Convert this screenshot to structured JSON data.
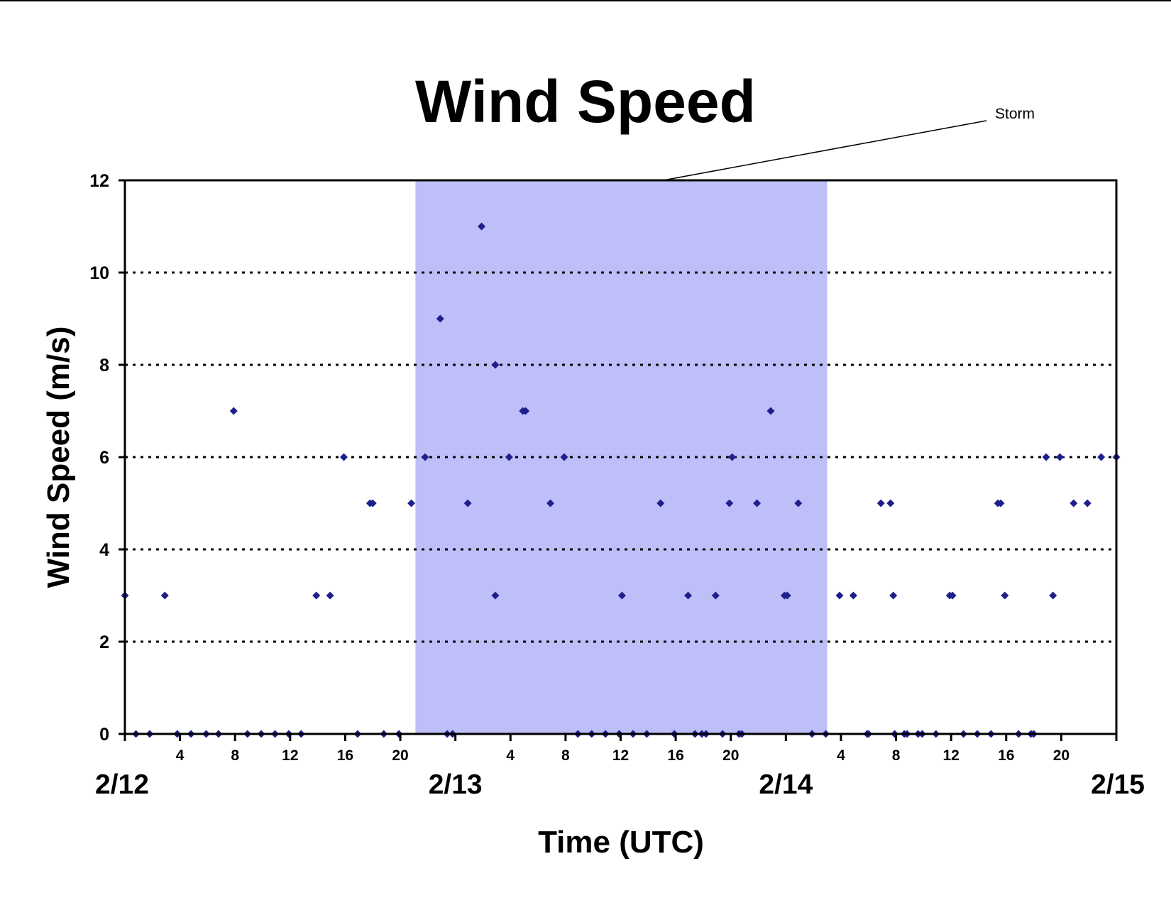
{
  "chart_data": {
    "type": "scatter",
    "title": "Wind Speed",
    "xlabel": "Time (UTC)",
    "ylabel": "Wind Speed (m/s)",
    "x_unit": "hours from 2/12 00:00 UTC",
    "xlim": [
      0,
      72
    ],
    "ylim": [
      0,
      12
    ],
    "y_ticks": [
      0,
      2,
      4,
      6,
      8,
      10,
      12
    ],
    "y_gridlines": [
      2,
      4,
      6,
      8,
      10
    ],
    "grid": "horizontal dotted",
    "legend": "none",
    "marker_color": "#1f1f8c",
    "shade_color": "#bebef8",
    "day_labels": [
      {
        "label": "2/12",
        "x": 0
      },
      {
        "label": "2/13",
        "x": 24
      },
      {
        "label": "2/14",
        "x": 48
      },
      {
        "label": "2/15",
        "x": 72
      }
    ],
    "hour_ticks": [
      {
        "label": "4",
        "x": 4
      },
      {
        "label": "8",
        "x": 8
      },
      {
        "label": "12",
        "x": 12
      },
      {
        "label": "16",
        "x": 16
      },
      {
        "label": "20",
        "x": 20
      },
      {
        "label": "4",
        "x": 28
      },
      {
        "label": "8",
        "x": 32
      },
      {
        "label": "12",
        "x": 36
      },
      {
        "label": "16",
        "x": 40
      },
      {
        "label": "20",
        "x": 44
      },
      {
        "label": "4",
        "x": 52
      },
      {
        "label": "8",
        "x": 56
      },
      {
        "label": "12",
        "x": 60
      },
      {
        "label": "16",
        "x": 64
      },
      {
        "label": "20",
        "x": 68
      }
    ],
    "storm": {
      "label": "Storm",
      "x_start": 21.1,
      "x_end": 51
    },
    "series": [
      {
        "points": [
          [
            0,
            3
          ],
          [
            0.8,
            0
          ],
          [
            1.8,
            0
          ],
          [
            2.9,
            3
          ],
          [
            3.8,
            0
          ],
          [
            4.8,
            0
          ],
          [
            5.9,
            0
          ],
          [
            6.8,
            0
          ],
          [
            7.9,
            7
          ],
          [
            8.9,
            0
          ],
          [
            9.9,
            0
          ],
          [
            10.9,
            0
          ],
          [
            11.9,
            0
          ],
          [
            12.8,
            0
          ],
          [
            13.9,
            3
          ],
          [
            14.9,
            3
          ],
          [
            15.9,
            6
          ],
          [
            16.9,
            0
          ],
          [
            17.8,
            5
          ],
          [
            18,
            5
          ],
          [
            18.8,
            0
          ],
          [
            19.9,
            0
          ],
          [
            20.8,
            5
          ],
          [
            21.8,
            6
          ],
          [
            22.9,
            9
          ],
          [
            23.4,
            0
          ],
          [
            23.8,
            0
          ],
          [
            24.9,
            5
          ],
          [
            25.9,
            11
          ],
          [
            26.9,
            3
          ],
          [
            26.9,
            8
          ],
          [
            27.9,
            6
          ],
          [
            28.9,
            7
          ],
          [
            29.1,
            7
          ],
          [
            30.9,
            5
          ],
          [
            31.9,
            6
          ],
          [
            32.9,
            0
          ],
          [
            33.9,
            0
          ],
          [
            34.9,
            0
          ],
          [
            35.9,
            0
          ],
          [
            36.1,
            3
          ],
          [
            36.9,
            0
          ],
          [
            37.9,
            0
          ],
          [
            38.9,
            5
          ],
          [
            39.9,
            0
          ],
          [
            40.9,
            3
          ],
          [
            41.4,
            0
          ],
          [
            41.9,
            0
          ],
          [
            42.2,
            0
          ],
          [
            42.9,
            3
          ],
          [
            43.4,
            0
          ],
          [
            43.9,
            5
          ],
          [
            44.1,
            6
          ],
          [
            44.6,
            0
          ],
          [
            44.8,
            0
          ],
          [
            45.9,
            5
          ],
          [
            46.9,
            7
          ],
          [
            47.9,
            3
          ],
          [
            48.1,
            3
          ],
          [
            48.9,
            5
          ],
          [
            49.9,
            0
          ],
          [
            50.9,
            0
          ],
          [
            51.9,
            3
          ],
          [
            52.9,
            3
          ],
          [
            53.9,
            0
          ],
          [
            54,
            0
          ],
          [
            54.9,
            5
          ],
          [
            55.6,
            5
          ],
          [
            55.8,
            3
          ],
          [
            55.9,
            0
          ],
          [
            56.6,
            0
          ],
          [
            56.8,
            0
          ],
          [
            57.6,
            0
          ],
          [
            57.9,
            0
          ],
          [
            58.9,
            0
          ],
          [
            59.9,
            3
          ],
          [
            60.1,
            3
          ],
          [
            60.9,
            0
          ],
          [
            61.9,
            0
          ],
          [
            62.9,
            0
          ],
          [
            63.4,
            5
          ],
          [
            63.6,
            5
          ],
          [
            63.9,
            3
          ],
          [
            64.9,
            0
          ],
          [
            65.8,
            0
          ],
          [
            66,
            0
          ],
          [
            66.9,
            6
          ],
          [
            67.4,
            3
          ],
          [
            67.9,
            6
          ],
          [
            68.9,
            5
          ],
          [
            69.9,
            5
          ],
          [
            70.9,
            6
          ],
          [
            72,
            6
          ]
        ]
      }
    ]
  }
}
